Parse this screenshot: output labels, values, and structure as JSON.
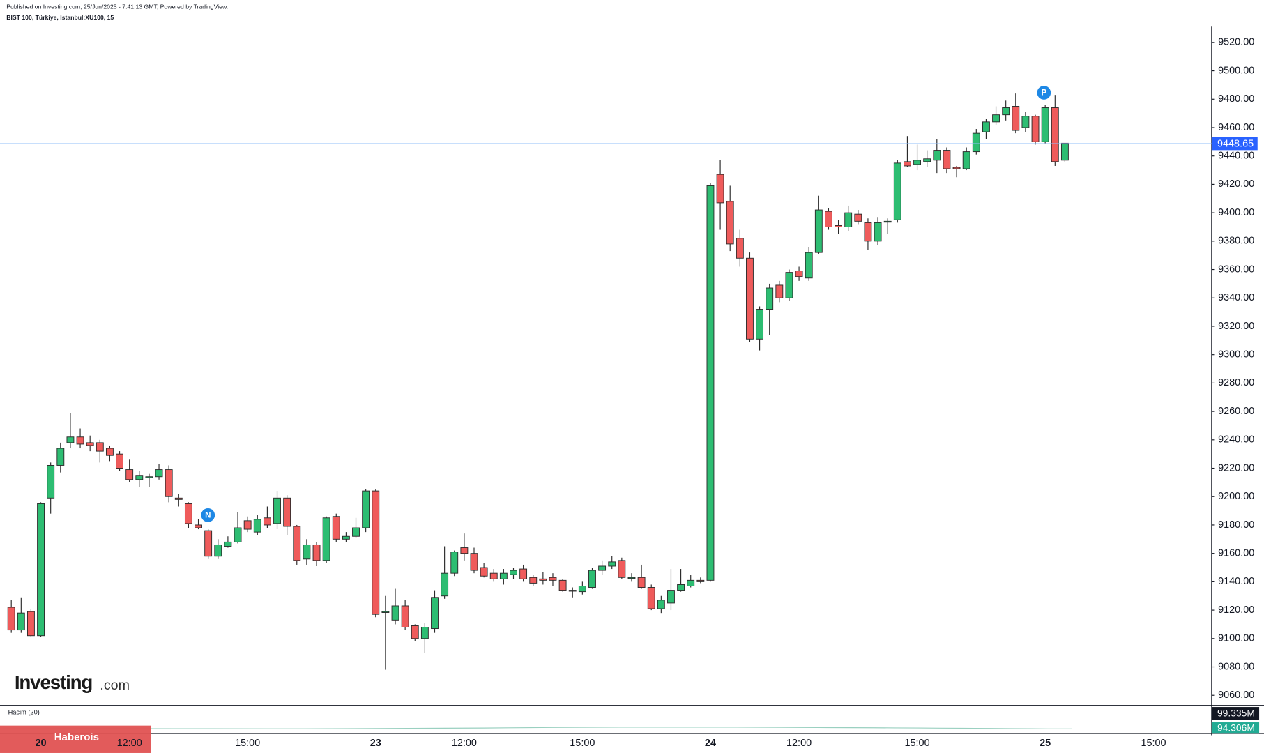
{
  "header": {
    "published": "Published on Investing.com, 25/Jun/2025 - 7:41:13 GMT, Powered by TradingView.",
    "symbol": "BIST 100, Türkiye, İstanbul:XU100, 15"
  },
  "chart_data": {
    "type": "candlestick",
    "categories": [
      "",
      null,
      null,
      "20",
      null,
      null,
      null,
      null,
      null,
      null,
      null,
      null,
      "12:00",
      null,
      null,
      null,
      null,
      null,
      null,
      null,
      null,
      null,
      null,
      null,
      "15:00",
      null,
      null,
      null,
      null,
      null,
      null,
      null,
      null,
      null,
      null,
      null,
      null,
      "23",
      null,
      null,
      null,
      null,
      null,
      null,
      null,
      null,
      "12:00",
      null,
      null,
      null,
      null,
      null,
      null,
      null,
      null,
      null,
      null,
      null,
      "15:00",
      null,
      null,
      null,
      null,
      null,
      null,
      null,
      null,
      null,
      null,
      null,
      null,
      "24",
      null,
      null,
      null,
      null,
      null,
      null,
      null,
      null,
      "12:00",
      null,
      null,
      null,
      null,
      null,
      null,
      null,
      null,
      null,
      null,
      null,
      "15:00",
      null,
      null,
      null,
      null,
      null,
      null,
      null,
      null,
      null,
      null,
      null,
      null,
      "25",
      null,
      null,
      null,
      null,
      null,
      null,
      null,
      null,
      null,
      null,
      "15:00"
    ],
    "open": [
      9122,
      9106,
      9119,
      9102,
      9199,
      9222,
      9238,
      9242,
      9238,
      9238,
      9234,
      9230,
      9219,
      9212,
      9214,
      9214,
      9219,
      9199,
      9195,
      9180,
      9176,
      9158,
      9165,
      9168,
      9183,
      9175,
      9185,
      9181,
      9199,
      9179,
      9156,
      9166,
      9155,
      9186,
      9170,
      9172,
      9178,
      9204,
      9119,
      9113,
      9123,
      9109,
      9100,
      9107,
      9130,
      9146,
      9164,
      9160,
      9150,
      9146,
      9142,
      9145,
      9149,
      9143,
      9142,
      9143,
      9141,
      9134,
      9133,
      9136,
      9148,
      9151,
      9155,
      9143,
      9143,
      9136,
      9121,
      9125,
      9134,
      9137,
      9141,
      9141,
      9427,
      9408,
      9382,
      9368,
      9311,
      9332,
      9349,
      9340,
      9359,
      9354,
      9372,
      9401,
      9391,
      9390,
      9399,
      9393,
      9380,
      9394,
      9395,
      9436,
      9434,
      9436,
      9437,
      9444,
      9432,
      9431,
      9443,
      9457,
      9464,
      9469,
      9475,
      9460,
      9468,
      9450,
      9474,
      9437,
      null,
      null,
      null,
      null,
      null,
      null,
      null,
      null,
      null
    ],
    "high": [
      9127,
      9129,
      9121,
      9196,
      9224,
      9238,
      9259,
      9248,
      9243,
      9240,
      9236,
      9232,
      9226,
      9218,
      9216,
      9223,
      9222,
      9202,
      9196,
      9184,
      9177,
      9170,
      9172,
      9189,
      9186,
      9187,
      9193,
      9204,
      9201,
      9180,
      9170,
      9168,
      9186,
      9188,
      9175,
      9185,
      9205,
      9205,
      9130,
      9135,
      9127,
      9110,
      9111,
      9134,
      9165,
      9162,
      9174,
      9164,
      9153,
      9149,
      9149,
      9150,
      9152,
      9145,
      9147,
      9146,
      9142,
      9136,
      9140,
      9150,
      9155,
      9158,
      9157,
      9146,
      9152,
      9138,
      9130,
      9149,
      9149,
      9145,
      9143,
      9421,
      9437,
      9419,
      9388,
      9372,
      9334,
      9350,
      9352,
      9360,
      9362,
      9376,
      9412,
      9403,
      9395,
      9405,
      9402,
      9396,
      9397,
      9396,
      9437,
      9454,
      9448,
      9444,
      9452,
      9446,
      9433,
      9446,
      9459,
      9466,
      9475,
      9479,
      9484,
      9471,
      9469,
      9476,
      9483,
      9449,
      null,
      null,
      null,
      null,
      null,
      null,
      null,
      null,
      null
    ],
    "low": [
      9104,
      9104,
      9101,
      9101,
      9188,
      9217,
      9234,
      9234,
      9232,
      9224,
      9225,
      9218,
      9210,
      9207,
      9207,
      9212,
      9196,
      9193,
      9178,
      9177,
      9156,
      9156,
      9164,
      9167,
      9175,
      9173,
      9178,
      9177,
      9173,
      9152,
      9152,
      9151,
      9153,
      9168,
      9168,
      9171,
      9175,
      9115,
      9078,
      9110,
      9106,
      9098,
      9090,
      9104,
      9128,
      9144,
      9155,
      9146,
      9143,
      9140,
      9138,
      9142,
      9140,
      9137,
      9138,
      9137,
      9133,
      9129,
      9131,
      9135,
      9145,
      9149,
      9142,
      9140,
      9135,
      9120,
      9118,
      9120,
      9133,
      9136,
      9139,
      9140,
      9388,
      9373,
      9362,
      9309,
      9303,
      9314,
      9337,
      9338,
      9352,
      9352,
      9371,
      9388,
      9385,
      9387,
      9392,
      9374,
      9377,
      9385,
      9393,
      9432,
      9430,
      9432,
      9428,
      9428,
      9425,
      9430,
      9441,
      9452,
      9462,
      9465,
      9456,
      9457,
      9448,
      9449,
      9433,
      9436,
      null,
      null,
      null,
      null,
      null,
      null,
      null,
      null,
      null
    ],
    "close": [
      9106,
      9118,
      9102,
      9195,
      9222,
      9234,
      9242,
      9237,
      9236,
      9232,
      9229,
      9220,
      9212,
      9215,
      9214,
      9219,
      9200,
      9198,
      9181,
      9178,
      9158,
      9166,
      9168,
      9178,
      9177,
      9184,
      9180,
      9199,
      9179,
      9155,
      9166,
      9155,
      9185,
      9170,
      9172,
      9178,
      9204,
      9117,
      9119,
      9123,
      9108,
      9100,
      9108,
      9129,
      9146,
      9161,
      9160,
      9148,
      9144,
      9142,
      9146,
      9148,
      9142,
      9139,
      9141,
      9141,
      9134,
      9134,
      9137,
      9148,
      9151,
      9154,
      9143,
      9143,
      9136,
      9121,
      9127,
      9134,
      9138,
      9141,
      9140,
      9419,
      9407,
      9378,
      9368,
      9311,
      9332,
      9347,
      9340,
      9358,
      9355,
      9372,
      9402,
      9390,
      9390,
      9400,
      9394,
      9380,
      9393,
      9394,
      9435,
      9433,
      9437,
      9438,
      9444,
      9431,
      9431,
      9443,
      9456,
      9464,
      9469,
      9474,
      9458,
      9468,
      9450,
      9474,
      9436,
      9449,
      null,
      null,
      null,
      null,
      null,
      null,
      null,
      null,
      null
    ],
    "up_color": "#2dbd72",
    "down_color": "#ef5b5b",
    "ylim": [
      9054,
      9530
    ],
    "yticks": [
      {
        "value": 9060,
        "label": "9060.00"
      },
      {
        "value": 9080,
        "label": "9080.00"
      },
      {
        "value": 9100,
        "label": "9100.00"
      },
      {
        "value": 9120,
        "label": "9120.00"
      },
      {
        "value": 9140,
        "label": "9140.00"
      },
      {
        "value": 9160,
        "label": "9160.00"
      },
      {
        "value": 9180,
        "label": "9180.00"
      },
      {
        "value": 9200,
        "label": "9200.00"
      },
      {
        "value": 9220,
        "label": "9220.00"
      },
      {
        "value": 9240,
        "label": "9240.00"
      },
      {
        "value": 9260,
        "label": "9260.00"
      },
      {
        "value": 9280,
        "label": "9280.00"
      },
      {
        "value": 9300,
        "label": "9300.00"
      },
      {
        "value": 9320,
        "label": "9320.00"
      },
      {
        "value": 9340,
        "label": "9340.00"
      },
      {
        "value": 9360,
        "label": "9360.00"
      },
      {
        "value": 9380,
        "label": "9380.00"
      },
      {
        "value": 9400,
        "label": "9400.00"
      },
      {
        "value": 9420,
        "label": "9420.00"
      },
      {
        "value": 9440,
        "label": "9440.00"
      },
      {
        "value": 9460,
        "label": "9460.00"
      },
      {
        "value": 9480,
        "label": "9480.00"
      },
      {
        "value": 9500,
        "label": "9500.00"
      },
      {
        "value": 9520,
        "label": "9520.00"
      }
    ],
    "last_price": 9448.65,
    "markers": [
      "N",
      "P"
    ]
  },
  "volume": {
    "title": "Hacim (20)",
    "last": "99.335M",
    "average": "94.306M"
  },
  "logo": [
    "Investing",
    ".com"
  ],
  "watermark": "Haberois"
}
